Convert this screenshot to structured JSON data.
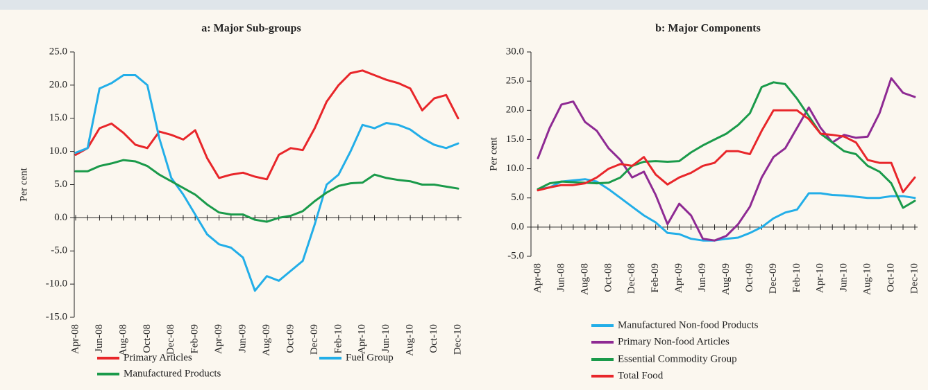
{
  "chart_data": [
    {
      "type": "line",
      "title": "a: Major Sub-groups",
      "ylabel": "Per cent",
      "categories": [
        "Apr-08",
        null,
        "Jun-08",
        null,
        "Aug-08",
        null,
        "Oct-08",
        null,
        "Dec-08",
        null,
        "Feb-09",
        null,
        "Apr-09",
        null,
        "Jun-09",
        null,
        "Aug-09",
        null,
        "Oct-09",
        null,
        "Dec-09",
        null,
        "Feb-10",
        null,
        "Apr-10",
        null,
        "Jun-10",
        null,
        "Aug-10",
        null,
        "Oct-10",
        null,
        "Dec-10"
      ],
      "ylim": [
        -15,
        25
      ],
      "yticks": [
        {
          "value": -15,
          "label": "-15.0"
        },
        {
          "value": -10,
          "label": "-10.0"
        },
        {
          "value": -5,
          "label": "-5.0"
        },
        {
          "value": 0,
          "label": "0.0"
        },
        {
          "value": 5,
          "label": "5.0"
        },
        {
          "value": 10,
          "label": "10.0"
        },
        {
          "value": 15,
          "label": "15.0"
        },
        {
          "value": 20,
          "label": "20.0"
        },
        {
          "value": 25,
          "label": "25.0"
        }
      ],
      "series": [
        {
          "name": "Primary Articles",
          "color": "#e8262a",
          "values": [
            9.5,
            10.5,
            13.5,
            14.2,
            12.8,
            11.0,
            10.5,
            13.0,
            12.5,
            11.8,
            13.2,
            9.0,
            6.0,
            6.5,
            6.8,
            6.2,
            5.8,
            9.5,
            10.5,
            10.2,
            13.5,
            17.5,
            20.0,
            21.8,
            22.2,
            21.5,
            20.8,
            20.3,
            19.5,
            16.2,
            18.0,
            18.5,
            15.0
          ]
        },
        {
          "name": "Fuel Group",
          "color": "#22aee8",
          "values": [
            9.8,
            10.5,
            19.5,
            20.3,
            21.5,
            21.5,
            20.0,
            12.0,
            6.0,
            3.5,
            0.5,
            -2.5,
            -4.0,
            -4.5,
            -6.0,
            -11.0,
            -8.8,
            -9.5,
            -8.0,
            -6.5,
            -1.0,
            5.0,
            6.5,
            10.0,
            14.0,
            13.5,
            14.3,
            14.0,
            13.3,
            12.0,
            11.0,
            10.5,
            11.2
          ]
        },
        {
          "name": "Manufactured Products",
          "color": "#1a9a4a",
          "values": [
            7.0,
            7.0,
            7.8,
            8.2,
            8.7,
            8.5,
            7.8,
            6.5,
            5.5,
            4.5,
            3.5,
            2.0,
            0.8,
            0.5,
            0.5,
            -0.3,
            -0.6,
            0.0,
            0.3,
            1.0,
            2.5,
            3.8,
            4.8,
            5.2,
            5.3,
            6.5,
            6.0,
            5.7,
            5.5,
            5.0,
            5.0,
            4.7,
            4.4
          ]
        }
      ]
    },
    {
      "type": "line",
      "title": "b: Major Components",
      "ylabel": "Per cent",
      "categories": [
        "Apr-08",
        null,
        "Jun-08",
        null,
        "Aug-08",
        null,
        "Oct-08",
        null,
        "Dec-08",
        null,
        "Feb-09",
        null,
        "Apr-09",
        null,
        "Jun-09",
        null,
        "Aug-09",
        null,
        "Oct-09",
        null,
        "Dec-09",
        null,
        "Feb-10",
        null,
        "Apr-10",
        null,
        "Jun-10",
        null,
        "Aug-10",
        null,
        "Oct-10",
        null,
        "Dec-10"
      ],
      "ylim": [
        -5,
        30
      ],
      "yticks": [
        {
          "value": -5,
          "label": "-5.0"
        },
        {
          "value": 0,
          "label": "0.0"
        },
        {
          "value": 5,
          "label": "5.0"
        },
        {
          "value": 10,
          "label": "10.0"
        },
        {
          "value": 15,
          "label": "15.0"
        },
        {
          "value": 20,
          "label": "20.0"
        },
        {
          "value": 25,
          "label": "25.0"
        },
        {
          "value": 30,
          "label": "30.0"
        }
      ],
      "series": [
        {
          "name": "Manufactured Non-food Products",
          "color": "#22aee8",
          "values": [
            6.5,
            6.8,
            7.8,
            8.0,
            8.2,
            7.8,
            6.5,
            5.0,
            3.5,
            2.0,
            0.8,
            -1.0,
            -1.2,
            -2.0,
            -2.3,
            -2.3,
            -2.0,
            -1.8,
            -1.0,
            0.0,
            1.5,
            2.5,
            3.0,
            5.8,
            5.8,
            5.5,
            5.4,
            5.2,
            5.0,
            5.0,
            5.3,
            5.3,
            5.0
          ]
        },
        {
          "name": "Primary Non-food Articles",
          "color": "#8e2a93",
          "values": [
            11.8,
            17.0,
            21.0,
            21.5,
            18.0,
            16.5,
            13.5,
            11.5,
            8.5,
            9.5,
            5.5,
            0.5,
            4.0,
            2.0,
            -2.0,
            -2.3,
            -1.5,
            0.5,
            3.5,
            8.5,
            12.0,
            13.5,
            17.0,
            20.5,
            17.0,
            14.5,
            15.8,
            15.3,
            15.5,
            19.5,
            25.5,
            23.0,
            22.3
          ]
        },
        {
          "name": "Essential Commodity Group",
          "color": "#1a9a4a",
          "values": [
            6.5,
            7.5,
            7.8,
            7.7,
            7.6,
            7.5,
            7.6,
            8.5,
            10.5,
            11.2,
            11.3,
            11.2,
            11.3,
            12.8,
            14.0,
            15.0,
            16.0,
            17.5,
            19.5,
            24.0,
            24.8,
            24.5,
            22.0,
            19.0,
            16.0,
            14.5,
            13.0,
            12.5,
            10.5,
            9.5,
            7.5,
            3.3,
            4.5
          ]
        },
        {
          "name": "Total Food",
          "color": "#e8262a",
          "values": [
            6.3,
            6.8,
            7.2,
            7.2,
            7.5,
            8.5,
            10.0,
            10.8,
            10.5,
            12.0,
            9.0,
            7.3,
            8.5,
            9.3,
            10.5,
            11.0,
            13.0,
            13.0,
            12.5,
            16.5,
            20.0,
            20.0,
            20.0,
            18.5,
            16.0,
            15.8,
            15.5,
            14.5,
            11.5,
            11.0,
            11.0,
            6.0,
            8.5
          ]
        }
      ]
    }
  ]
}
